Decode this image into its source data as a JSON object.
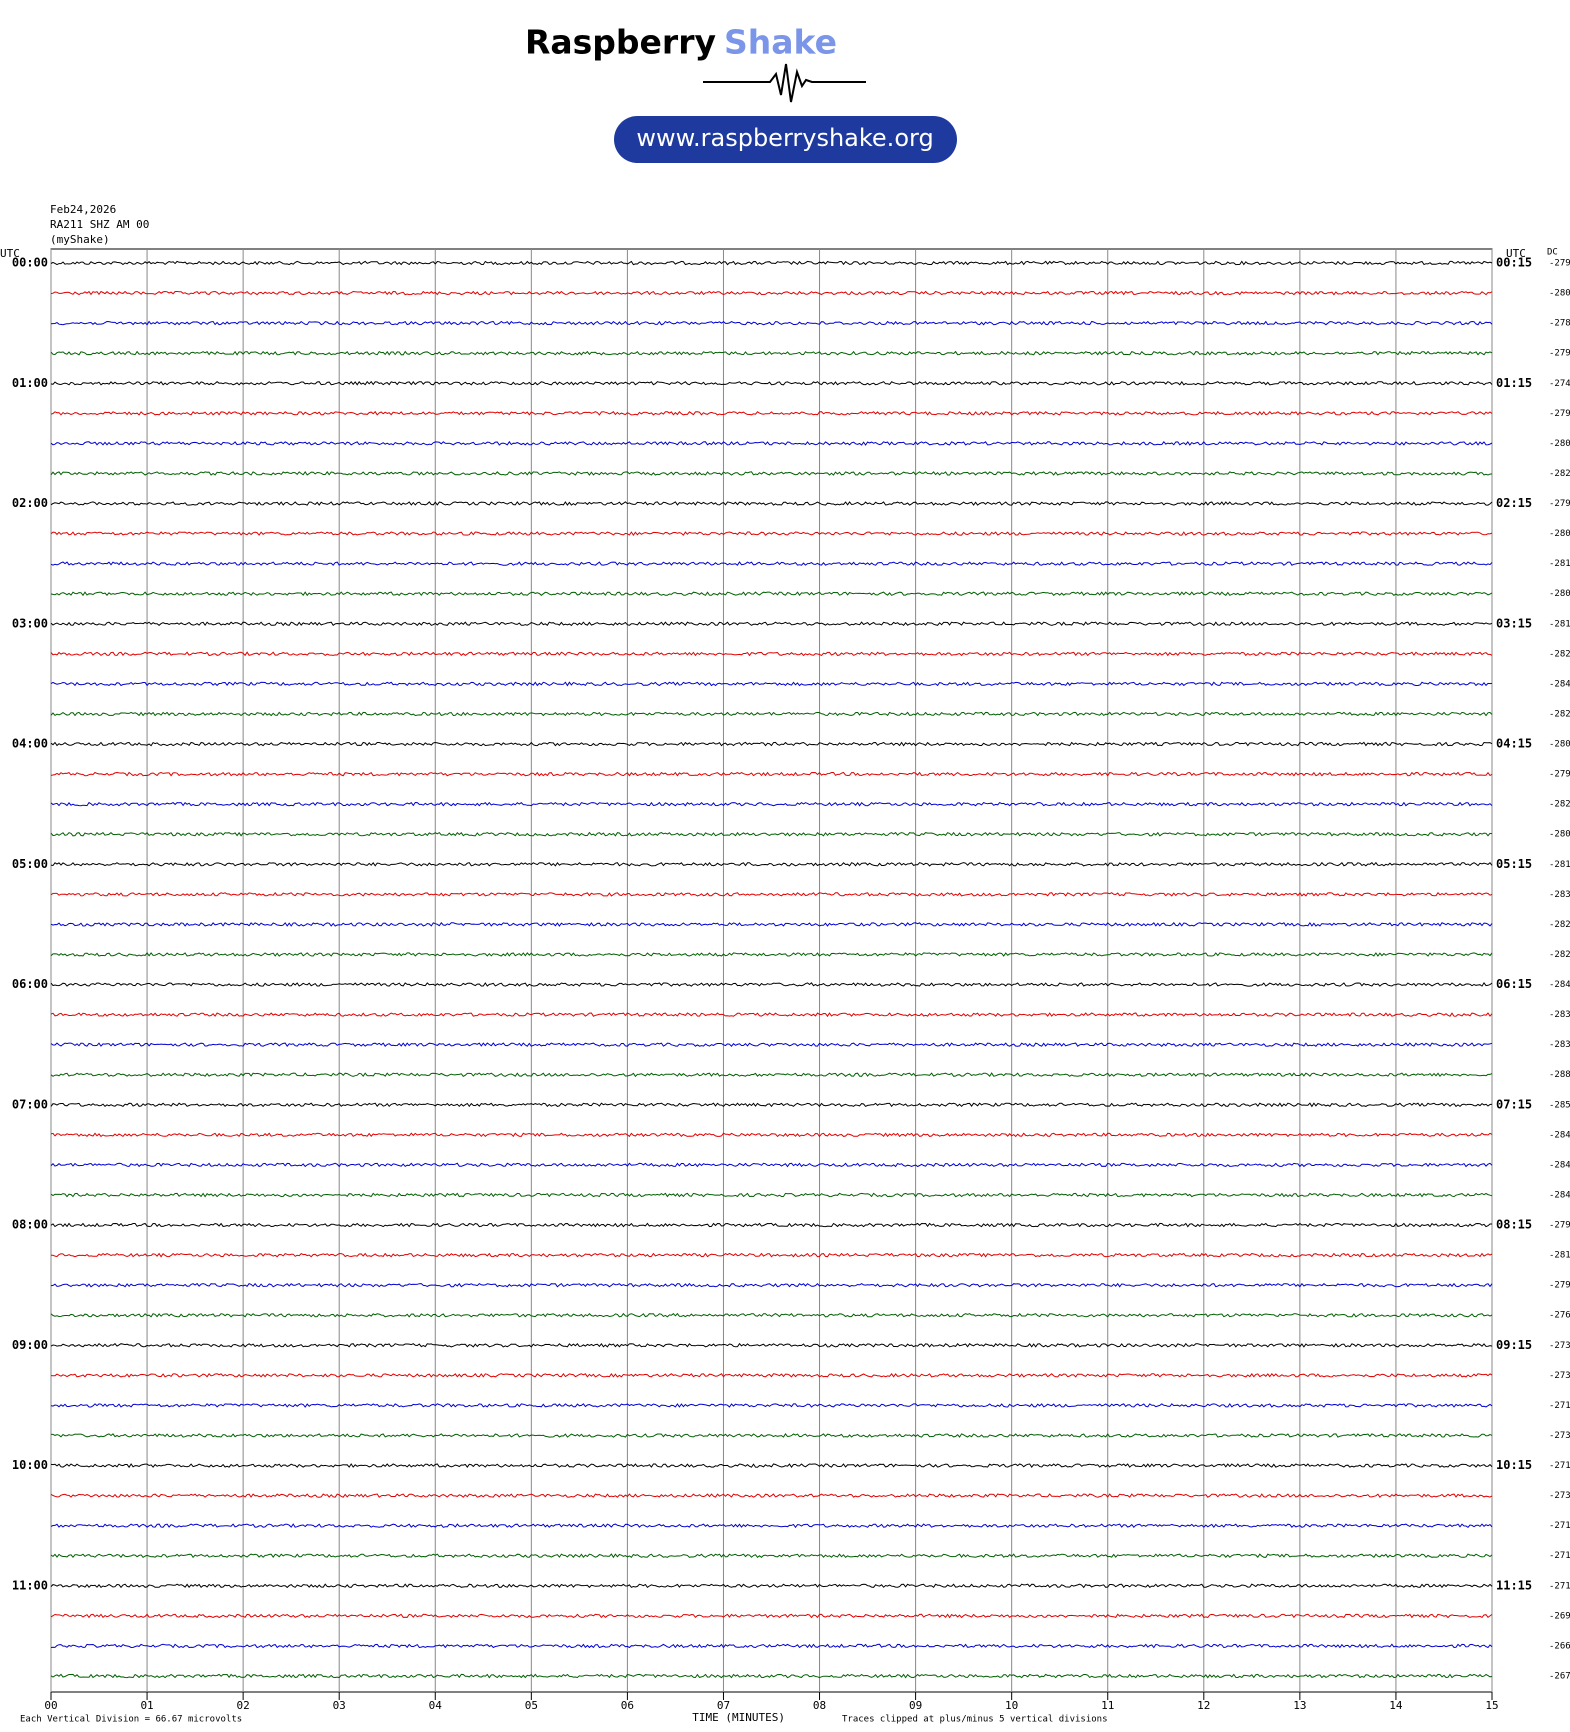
{
  "header": {
    "brand": "Raspberry",
    "brand_accent": "Shake",
    "url": "www.raspberryshake.org"
  },
  "chart_data": {
    "type": "helicorder",
    "date": "Feb24,2026",
    "station": "RA211 SHZ AM 00",
    "network": "(myShake)",
    "left_axis_label": "UTC",
    "right_axis_label": "UTC",
    "dc_label": "DC",
    "left_row_labels": [
      "00:00",
      "01:00",
      "02:00",
      "03:00",
      "04:00",
      "05:00",
      "06:00",
      "07:00",
      "08:00",
      "09:00",
      "10:00",
      "11:00"
    ],
    "right_row_labels": [
      "00:15",
      "01:15",
      "02:15",
      "03:15",
      "04:15",
      "05:15",
      "06:15",
      "07:15",
      "08:15",
      "09:15",
      "10:15",
      "11:15"
    ],
    "dc_values": [
      -279,
      -280,
      -278,
      -279,
      -274,
      -279,
      -280,
      -282,
      -279,
      -280,
      -281,
      -280,
      -281,
      -282,
      -284,
      -282,
      -280,
      -279,
      -282,
      -280,
      -281,
      -283,
      -282,
      -282,
      -284,
      -283,
      -283,
      -288,
      -285,
      -284,
      -284,
      -284,
      -279,
      -281,
      -279,
      -276,
      -273,
      -273,
      -271,
      -273,
      -271,
      -273,
      -271,
      -271,
      -271,
      -269,
      -266,
      -267
    ],
    "trace_colors": [
      "#000000",
      "#e00000",
      "#0000d0",
      "#006000"
    ],
    "xlim": [
      0,
      15
    ],
    "xticks": [
      {
        "value": 0,
        "label": "00"
      },
      {
        "value": 1,
        "label": "01"
      },
      {
        "value": 2,
        "label": "02"
      },
      {
        "value": 3,
        "label": "03"
      },
      {
        "value": 4,
        "label": "04"
      },
      {
        "value": 5,
        "label": "05"
      },
      {
        "value": 6,
        "label": "06"
      },
      {
        "value": 7,
        "label": "07"
      },
      {
        "value": 8,
        "label": "08"
      },
      {
        "value": 9,
        "label": "09"
      },
      {
        "value": 10,
        "label": "10"
      },
      {
        "value": 11,
        "label": "11"
      },
      {
        "value": 12,
        "label": "12"
      },
      {
        "value": 13,
        "label": "13"
      },
      {
        "value": 14,
        "label": "14"
      },
      {
        "value": 15,
        "label": "15"
      }
    ],
    "xlabel": "TIME (MINUTES)",
    "scale_note": "Each Vertical Division =  66.67 microvolts",
    "clip_note": "Traces clipped at plus/minus 5 vertical divisions",
    "grid": true
  }
}
